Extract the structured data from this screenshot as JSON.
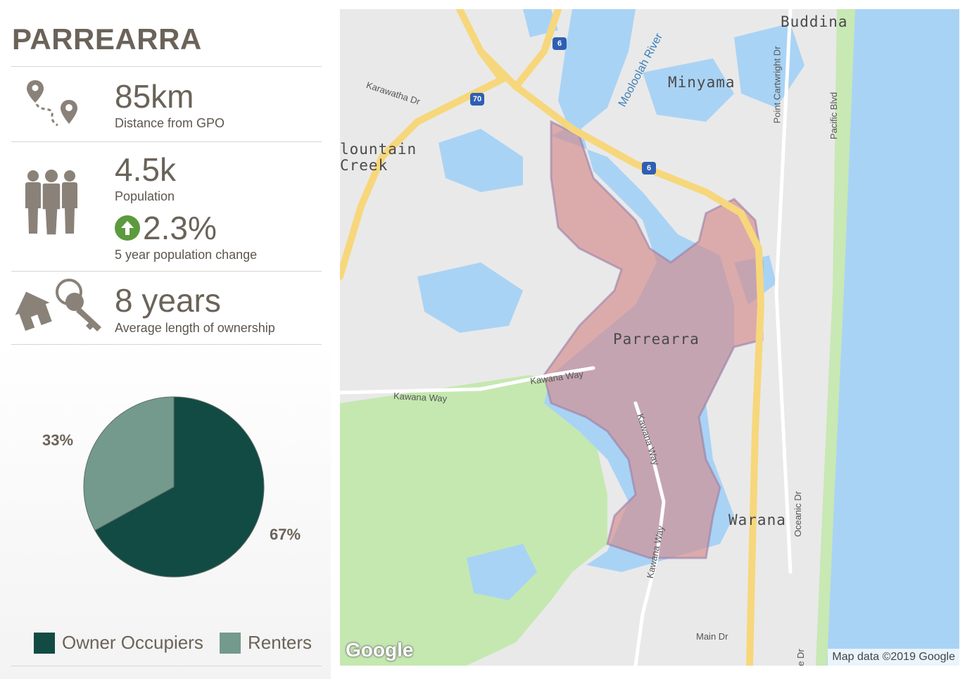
{
  "suburb": {
    "name": "PARREARRA"
  },
  "stats": {
    "distance": {
      "value": "85km",
      "label": "Distance from GPO",
      "icon": "route-pin-icon"
    },
    "population": {
      "value": "4.5k",
      "label": "Population",
      "icon": "people-icon",
      "change": {
        "value": "2.3%",
        "label": "5 year population change",
        "direction": "up",
        "icon": "up-arrow-icon",
        "color": "#5c9a3d"
      }
    },
    "ownership": {
      "value": "8 years",
      "label": "Average length of ownership",
      "icon": "house-keys-icon"
    }
  },
  "chart_data": {
    "type": "pie",
    "categories": [
      "Owner Occupiers",
      "Renters"
    ],
    "values": [
      67,
      33
    ],
    "labels": [
      "67%",
      "33%"
    ],
    "colors": [
      "#124b44",
      "#739a8d"
    ],
    "legend_position": "bottom"
  },
  "map": {
    "places": {
      "buddina": "Buddina",
      "minyama": "Minyama",
      "mountain_creek": "lountain\nCreek",
      "parrearra": "Parrearra",
      "warana": "Warana"
    },
    "roads": {
      "karawatha": "Karawatha Dr",
      "kawana_way_1": "Kawana Way",
      "kawana_way_2": "Kawana Way",
      "kawana_way_3": "Kawana Way",
      "kawana_way_4": "Kawana Way",
      "point_cartwright": "Point Cartwright Dr",
      "pacific_blvd": "Pacific Blvd",
      "oceanic": "Oceanic Dr",
      "main": "Main Dr",
      "clipped": "e Dr"
    },
    "river": "Mooloolah River",
    "shields": {
      "s1": "6",
      "s2": "70",
      "s3": "6"
    },
    "logo": "Google",
    "attribution": "Map data ©2019 Google",
    "colors": {
      "suburb_fill": "#d48a8c",
      "water": "#a9d3f5",
      "park": "#c5e8b0",
      "motorway": "#f7d77c"
    }
  }
}
